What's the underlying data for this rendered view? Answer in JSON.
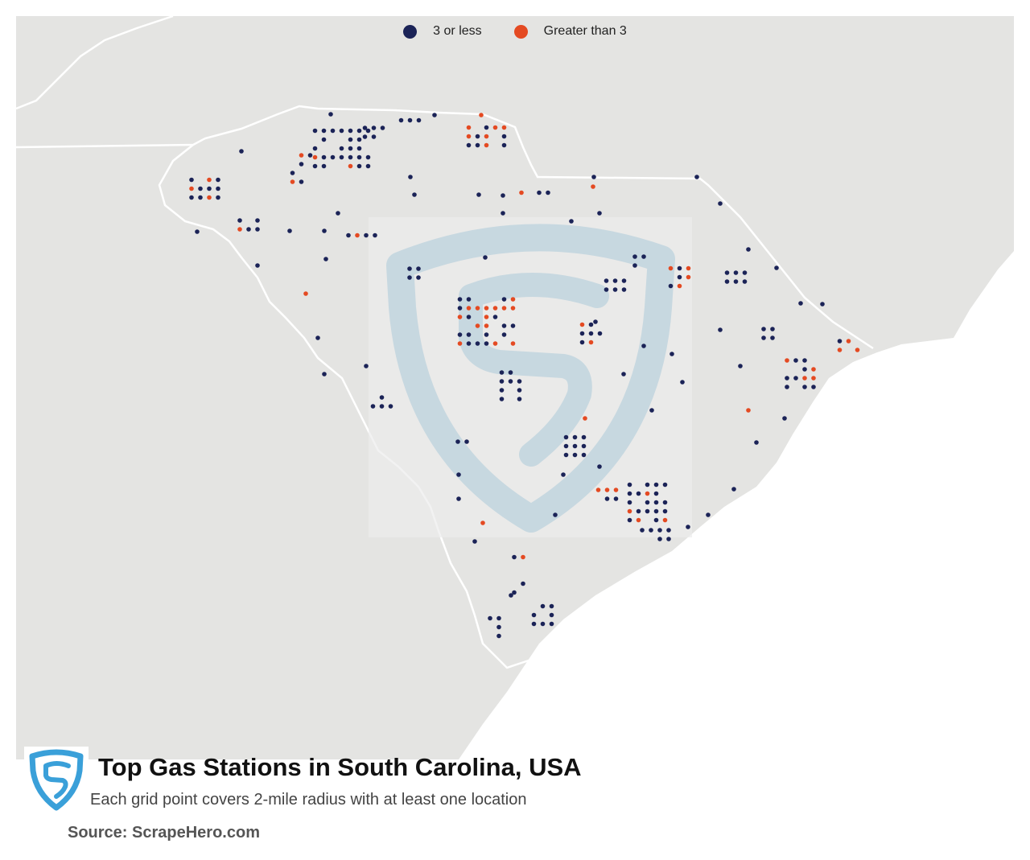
{
  "legend": [
    {
      "label": "3 or less",
      "color": "#1b2357"
    },
    {
      "label": "Greater than 3",
      "color": "#e44a22"
    }
  ],
  "title": "Top Gas Stations in South Carolina, USA",
  "subtitle": "Each grid point covers 2-mile radius with at least one location",
  "source": "Source: ScrapeHero.com",
  "colors": {
    "land": "#e4e4e2",
    "border": "#ffffff",
    "ocean": "#ffffff",
    "watermark": "#a9c8d9",
    "logo": "#3aa0d9"
  },
  "icons": {
    "logo": "scrapehero-shield-logo",
    "watermark": "scrapehero-shield-watermark"
  }
}
